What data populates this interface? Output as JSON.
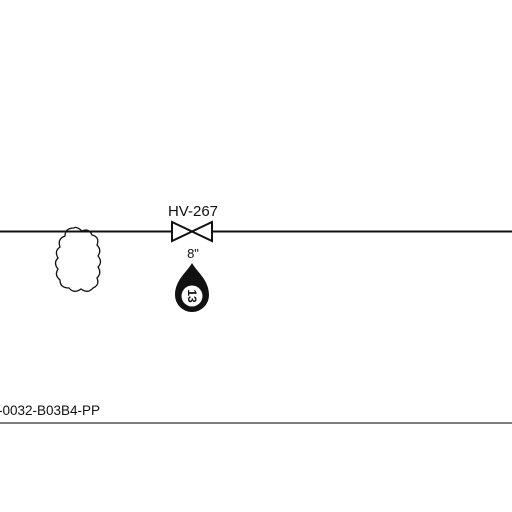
{
  "diagram": {
    "valve": {
      "tag": "HV-267",
      "size": "8\"",
      "balloon_number": "13"
    },
    "line_number": "-0032-B03B4-PP",
    "colors": {
      "line": "#111111",
      "underline": "#555555",
      "background": "#ffffff"
    }
  }
}
